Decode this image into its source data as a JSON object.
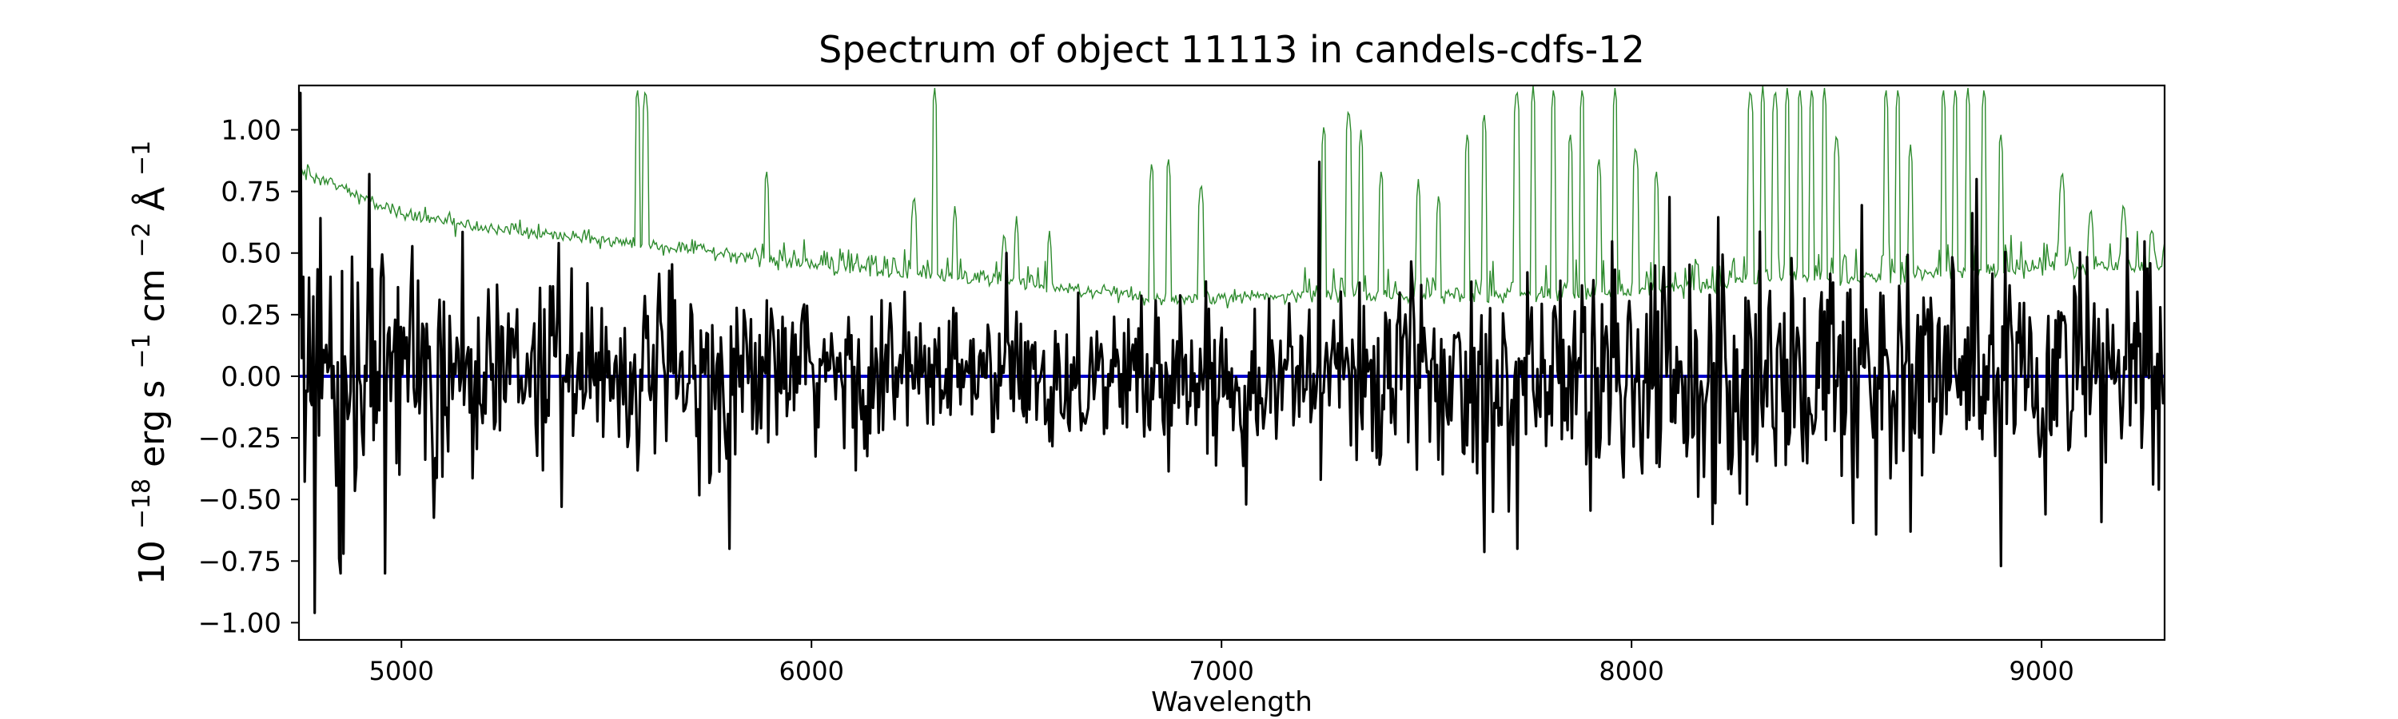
{
  "chart_data": {
    "type": "line",
    "title": "Spectrum of object 11113 in candels-cdfs-12",
    "xlabel": "Wavelength",
    "ylabel": {
      "base": "10",
      "exp": "−18",
      "unit1": " erg s",
      "exp1": "−1",
      "unit2": " cm",
      "exp2": "−2",
      "unit3": " Å",
      "exp3": "−1"
    },
    "xlim": [
      4750,
      9300
    ],
    "ylim": [
      -1.07,
      1.18
    ],
    "xticks": [
      5000,
      6000,
      7000,
      8000,
      9000
    ],
    "xtick_labels": [
      "5000",
      "6000",
      "7000",
      "8000",
      "9000"
    ],
    "yticks": [
      -1.0,
      -0.75,
      -0.5,
      -0.25,
      0.0,
      0.25,
      0.5,
      0.75,
      1.0
    ],
    "ytick_labels": [
      "−1.00",
      "−0.75",
      "−0.50",
      "−0.25",
      "0.00",
      "0.25",
      "0.50",
      "0.75",
      "1.00"
    ],
    "grid": false,
    "colors": {
      "flux": "#000000",
      "error": "#2e8b2e",
      "model": "#0000cc"
    },
    "series": [
      {
        "role": "flux",
        "style": "noisy",
        "stddev_curve": {
          "x": [
            4750,
            5500,
            6500,
            7200,
            7700,
            8300,
            8600,
            9000,
            9300
          ],
          "y": [
            0.32,
            0.25,
            0.2,
            0.2,
            0.3,
            0.4,
            0.38,
            0.3,
            0.3
          ]
        },
        "peaks": [
          {
            "x": 4755,
            "y": 1.15
          },
          {
            "x": 4775,
            "y": 0.4
          },
          {
            "x": 4790,
            "y": -0.96
          },
          {
            "x": 4850,
            "y": -0.8
          },
          {
            "x": 4960,
            "y": -0.8
          },
          {
            "x": 4920,
            "y": 0.82
          },
          {
            "x": 5385,
            "y": 0.54
          },
          {
            "x": 5800,
            "y": -0.7
          },
          {
            "x": 7060,
            "y": -0.52
          },
          {
            "x": 7240,
            "y": 0.87
          },
          {
            "x": 7720,
            "y": -0.7
          },
          {
            "x": 8280,
            "y": -0.52
          },
          {
            "x": 8680,
            "y": -0.63
          },
          {
            "x": 8900,
            "y": -0.77
          },
          {
            "x": 8840,
            "y": 0.8
          },
          {
            "x": 9290,
            "y": 0.28
          },
          {
            "x": 9285,
            "y": -0.46
          }
        ]
      },
      {
        "role": "error",
        "style": "envelope",
        "baseline": {
          "x": [
            4750,
            4800,
            4900,
            5000,
            5200,
            5500,
            5800,
            6000,
            6200,
            6500,
            6800,
            6900,
            7000,
            7200,
            7500,
            7800,
            8000,
            8200,
            8300,
            8600,
            8800,
            9000,
            9300
          ],
          "y": [
            0.83,
            0.8,
            0.73,
            0.66,
            0.6,
            0.55,
            0.5,
            0.45,
            0.42,
            0.38,
            0.32,
            0.3,
            0.32,
            0.33,
            0.32,
            0.33,
            0.34,
            0.36,
            0.4,
            0.4,
            0.42,
            0.44,
            0.45
          ]
        },
        "spikes": [
          {
            "x": 5575,
            "y": 1.18
          },
          {
            "x": 5595,
            "y": 1.18
          },
          {
            "x": 5890,
            "y": 0.85
          },
          {
            "x": 6250,
            "y": 0.75
          },
          {
            "x": 6300,
            "y": 1.18
          },
          {
            "x": 6350,
            "y": 0.7
          },
          {
            "x": 6470,
            "y": 0.6
          },
          {
            "x": 6500,
            "y": 0.65
          },
          {
            "x": 6580,
            "y": 0.6
          },
          {
            "x": 6830,
            "y": 0.88
          },
          {
            "x": 6870,
            "y": 0.9
          },
          {
            "x": 6950,
            "y": 0.8
          },
          {
            "x": 7250,
            "y": 1.03
          },
          {
            "x": 7310,
            "y": 1.1
          },
          {
            "x": 7340,
            "y": 1.0
          },
          {
            "x": 7390,
            "y": 0.85
          },
          {
            "x": 7480,
            "y": 0.8
          },
          {
            "x": 7530,
            "y": 0.75
          },
          {
            "x": 7600,
            "y": 1.0
          },
          {
            "x": 7640,
            "y": 1.08
          },
          {
            "x": 7720,
            "y": 1.18
          },
          {
            "x": 7760,
            "y": 1.18
          },
          {
            "x": 7810,
            "y": 1.18
          },
          {
            "x": 7850,
            "y": 1.0
          },
          {
            "x": 7880,
            "y": 1.18
          },
          {
            "x": 7920,
            "y": 0.9
          },
          {
            "x": 7960,
            "y": 1.18
          },
          {
            "x": 8010,
            "y": 0.95
          },
          {
            "x": 8060,
            "y": 0.85
          },
          {
            "x": 8290,
            "y": 1.18
          },
          {
            "x": 8320,
            "y": 1.18
          },
          {
            "x": 8350,
            "y": 1.18
          },
          {
            "x": 8380,
            "y": 1.18
          },
          {
            "x": 8410,
            "y": 1.18
          },
          {
            "x": 8440,
            "y": 1.18
          },
          {
            "x": 8470,
            "y": 1.18
          },
          {
            "x": 8500,
            "y": 1.0
          },
          {
            "x": 8620,
            "y": 1.18
          },
          {
            "x": 8650,
            "y": 1.18
          },
          {
            "x": 8680,
            "y": 0.95
          },
          {
            "x": 8760,
            "y": 1.18
          },
          {
            "x": 8790,
            "y": 1.18
          },
          {
            "x": 8820,
            "y": 1.18
          },
          {
            "x": 8860,
            "y": 1.18
          },
          {
            "x": 8900,
            "y": 1.0
          },
          {
            "x": 9050,
            "y": 0.85
          },
          {
            "x": 9120,
            "y": 0.7
          },
          {
            "x": 9200,
            "y": 0.72
          },
          {
            "x": 9270,
            "y": 0.62
          }
        ]
      },
      {
        "role": "model",
        "style": "line",
        "x": [
          4750,
          9300
        ],
        "y": [
          0.0,
          0.0
        ]
      }
    ]
  }
}
